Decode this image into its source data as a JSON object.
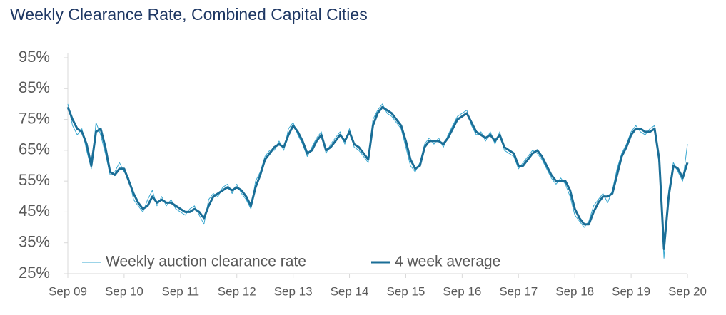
{
  "chart_data": {
    "type": "line",
    "title": "Weekly Clearance Rate, Combined Capital Cities",
    "categories": [
      "Sep 09",
      null,
      null,
      null,
      null,
      null,
      null,
      null,
      null,
      null,
      null,
      null,
      "Sep 10",
      null,
      null,
      null,
      null,
      null,
      null,
      null,
      null,
      null,
      null,
      null,
      "Sep 11",
      null,
      null,
      null,
      null,
      null,
      null,
      null,
      null,
      null,
      null,
      null,
      "Sep 12",
      null,
      null,
      null,
      null,
      null,
      null,
      null,
      null,
      null,
      null,
      null,
      "Sep 13",
      null,
      null,
      null,
      null,
      null,
      null,
      null,
      null,
      null,
      null,
      null,
      "Sep 14",
      null,
      null,
      null,
      null,
      null,
      null,
      null,
      null,
      null,
      null,
      null,
      "Sep 15",
      null,
      null,
      null,
      null,
      null,
      null,
      null,
      null,
      null,
      null,
      null,
      "Sep 16",
      null,
      null,
      null,
      null,
      null,
      null,
      null,
      null,
      null,
      null,
      null,
      "Sep 17",
      null,
      null,
      null,
      null,
      null,
      null,
      null,
      null,
      null,
      null,
      null,
      "Sep 18",
      null,
      null,
      null,
      null,
      null,
      null,
      null,
      null,
      null,
      null,
      null,
      "Sep 19",
      null,
      null,
      null,
      null,
      null,
      null,
      null,
      null,
      null,
      null,
      null,
      "Sep 20"
    ],
    "series": [
      {
        "name": "Weekly auction clearance rate",
        "color": "#3aa8d0",
        "width": 1,
        "values": [
          80,
          73,
          70,
          72,
          65,
          59,
          74,
          70,
          64,
          57,
          58,
          61,
          58,
          56,
          49,
          47,
          45,
          49,
          52,
          47,
          50,
          47,
          49,
          46,
          45,
          44,
          46,
          47,
          44,
          41,
          49,
          51,
          50,
          53,
          54,
          51,
          54,
          51,
          49,
          46,
          55,
          58,
          63,
          65,
          65,
          68,
          65,
          72,
          74,
          70,
          67,
          63,
          66,
          69,
          71,
          64,
          67,
          69,
          71,
          67,
          72,
          66,
          65,
          63,
          61,
          75,
          78,
          80,
          77,
          76,
          74,
          72,
          66,
          60,
          58,
          61,
          67,
          69,
          67,
          69,
          66,
          70,
          73,
          76,
          77,
          78,
          73,
          70,
          71,
          68,
          71,
          67,
          71,
          65,
          64,
          63,
          59,
          61,
          63,
          65,
          64,
          62,
          59,
          56,
          54,
          56,
          54,
          50,
          44,
          42,
          40,
          42,
          47,
          49,
          51,
          48,
          52,
          59,
          64,
          67,
          71,
          73,
          71,
          70,
          72,
          73,
          60,
          30,
          52,
          61,
          58,
          55,
          67
        ]
      },
      {
        "name": "4 week average",
        "color": "#1a6e97",
        "width": 3,
        "values": [
          79,
          75,
          72,
          71,
          67,
          60,
          71,
          72,
          66,
          58,
          57,
          59,
          59,
          55,
          51,
          48,
          46,
          47,
          50,
          48,
          49,
          48,
          48,
          47,
          46,
          45,
          45,
          46,
          45,
          43,
          47,
          50,
          51,
          52,
          53,
          52,
          53,
          52,
          50,
          47,
          53,
          57,
          62,
          64,
          66,
          67,
          66,
          70,
          73,
          71,
          68,
          64,
          65,
          68,
          70,
          65,
          66,
          68,
          70,
          68,
          71,
          67,
          66,
          64,
          62,
          73,
          77,
          79,
          78,
          77,
          75,
          73,
          68,
          62,
          59,
          60,
          66,
          68,
          68,
          68,
          67,
          69,
          72,
          75,
          76,
          77,
          74,
          71,
          70,
          69,
          70,
          68,
          70,
          66,
          65,
          64,
          60,
          60,
          62,
          64,
          65,
          63,
          60,
          57,
          55,
          55,
          55,
          52,
          46,
          43,
          41,
          41,
          45,
          48,
          50,
          50,
          51,
          57,
          63,
          66,
          70,
          72,
          72,
          71,
          71,
          72,
          62,
          33,
          50,
          60,
          59,
          56,
          61
        ]
      }
    ],
    "ylim": [
      25,
      95
    ],
    "yticks": [
      {
        "value": 25,
        "label": "25%"
      },
      {
        "value": 35,
        "label": "35%"
      },
      {
        "value": 45,
        "label": "45%"
      },
      {
        "value": 55,
        "label": "55%"
      },
      {
        "value": 65,
        "label": "65%"
      },
      {
        "value": 75,
        "label": "75%"
      },
      {
        "value": 85,
        "label": "85%"
      },
      {
        "value": 95,
        "label": "95%"
      }
    ],
    "grid": false
  }
}
